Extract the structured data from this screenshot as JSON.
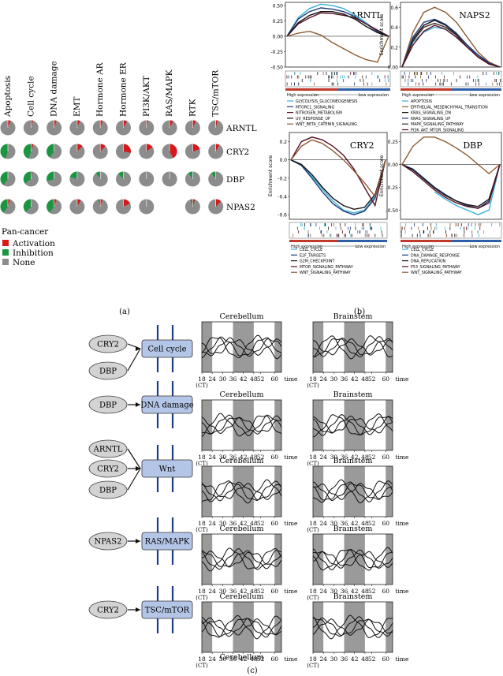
{
  "panel_labels": {
    "a": "(a)",
    "b": "(b)",
    "c": "(c)"
  },
  "chart_data": [
    {
      "type": "pie",
      "panel": "a",
      "columns": [
        "Apoptosis",
        "Cell cycle",
        "DNA damage",
        "EMT",
        "Hormone AR",
        "Hormone ER",
        "PI3K/AKT",
        "RAS/MAPK",
        "RTK",
        "TSC/mTOR"
      ],
      "rows": [
        "ARNTL",
        "CRY2",
        "DBP",
        "NPAS2"
      ],
      "legend": {
        "title": "Pan-cancer",
        "items": [
          {
            "label": "Activation",
            "color": "#d7191c"
          },
          {
            "label": "Inhibition",
            "color": "#1a9641"
          },
          {
            "label": "None",
            "color": "#8c8c8c"
          }
        ]
      },
      "colors": {
        "activation": "#d7191c",
        "inhibition": "#1a9641",
        "none": "#8c8c8c"
      },
      "values": [
        [
          [
            0.06,
            0.0
          ],
          [
            0.04,
            0.0
          ],
          [
            0.05,
            0.0
          ],
          [
            0.06,
            0.0
          ],
          [
            0.05,
            0.0
          ],
          [
            0.08,
            0.0
          ],
          [
            0.03,
            0.0
          ],
          [
            0.08,
            0.0
          ],
          [
            0.07,
            0.0
          ],
          [
            0.04,
            0.0
          ]
        ],
        [
          [
            0.0,
            0.45
          ],
          [
            0.05,
            0.45
          ],
          [
            0.0,
            0.4
          ],
          [
            0.12,
            0.0
          ],
          [
            0.12,
            0.0
          ],
          [
            0.28,
            0.0
          ],
          [
            0.15,
            0.0
          ],
          [
            0.42,
            0.0
          ],
          [
            0.2,
            0.0
          ],
          [
            0.08,
            0.0
          ]
        ],
        [
          [
            0.0,
            0.4
          ],
          [
            0.03,
            0.35
          ],
          [
            0.0,
            0.3
          ],
          [
            0.0,
            0.2
          ],
          [
            0.0,
            0.1
          ],
          [
            0.0,
            0.12
          ],
          [
            0.0,
            0.01
          ],
          [
            0.0,
            0.0
          ],
          [
            0.0,
            0.1
          ],
          [
            0.0,
            0.1
          ]
        ],
        [
          [
            0.05,
            0.4
          ],
          [
            0.02,
            0.38
          ],
          [
            0.05,
            0.4
          ],
          [
            0.08,
            0.0
          ],
          [
            0.05,
            0.05
          ],
          [
            0.18,
            0.0
          ],
          [
            0.0,
            0.0
          ],
          [
            null,
            null
          ],
          [
            0.05,
            0.05
          ],
          [
            0.12,
            0.0
          ]
        ]
      ]
    },
    {
      "type": "line",
      "panel": "b",
      "plots": [
        {
          "title": "ARNTL",
          "ylabel": "",
          "yticks": [
            "0.50",
            "0.25",
            "0.00",
            "-0.25",
            "-0.50"
          ],
          "ylim": [
            -0.5,
            0.55
          ],
          "bottom_labels": [
            "High expression",
            "Low expression"
          ],
          "series": [
            {
              "name": "GLYCOLYSIS_GLUCONEOGENESIS",
              "color": "#3cb0d8",
              "values": [
                0,
                0.3,
                0.45,
                0.52,
                0.5,
                0.45,
                0.35,
                0.22,
                0.08,
                0
              ]
            },
            {
              "name": "MTORC1_SIGNALING",
              "color": "#1d3a78",
              "values": [
                0,
                0.28,
                0.4,
                0.46,
                0.44,
                0.4,
                0.32,
                0.2,
                0.08,
                0
              ]
            },
            {
              "name": "NITROGEN_METABOLISM",
              "color": "#5a0f24",
              "values": [
                0,
                0.2,
                0.3,
                0.38,
                0.37,
                0.34,
                0.3,
                0.2,
                0.1,
                0
              ]
            },
            {
              "name": "UV_RESPONSE_UP",
              "color": "#151515",
              "values": [
                0,
                0.22,
                0.34,
                0.4,
                0.4,
                0.36,
                0.28,
                0.16,
                0.06,
                0
              ]
            },
            {
              "name": "WNT_BETA_CATENIN_SIGNALING",
              "color": "#8b5a32",
              "values": [
                0,
                0.05,
                0.08,
                0.02,
                -0.1,
                -0.2,
                -0.3,
                -0.38,
                -0.42,
                0
              ]
            }
          ]
        },
        {
          "title": "NAPS2",
          "ylabel": "Enrichment score",
          "yticks": [
            "0.6",
            "0.4",
            "0.2",
            "0.00"
          ],
          "ylim": [
            0,
            0.65
          ],
          "bottom_labels": [
            "High expression",
            "Low expression"
          ],
          "series": [
            {
              "name": "APOPTOSIS",
              "color": "#3cb0d8",
              "values": [
                0,
                0.25,
                0.35,
                0.4,
                0.38,
                0.3,
                0.2,
                0.12,
                0.05,
                0
              ]
            },
            {
              "name": "EPITHELIAL_MESENCHYMAL_TRANSITION",
              "color": "#8b5a32",
              "values": [
                0,
                0.35,
                0.55,
                0.6,
                0.55,
                0.45,
                0.3,
                0.15,
                0.05,
                0
              ]
            },
            {
              "name": "KRAS_SIGNALING_DN",
              "color": "#151515",
              "values": [
                0,
                0.28,
                0.42,
                0.47,
                0.42,
                0.33,
                0.22,
                0.12,
                0.04,
                0
              ]
            },
            {
              "name": "KRAS_SIGNALING_UP",
              "color": "#1d3a78",
              "values": [
                0,
                0.3,
                0.45,
                0.48,
                0.43,
                0.34,
                0.22,
                0.12,
                0.04,
                0
              ]
            },
            {
              "name": "MAPK_SIGNALING_PATHWAY",
              "color": "#3a2a22",
              "values": [
                0,
                0.26,
                0.4,
                0.44,
                0.4,
                0.32,
                0.2,
                0.1,
                0.03,
                0
              ]
            },
            {
              "name": "PI3K_AKT_MTOR_SIGNALING",
              "color": "#5a0f24",
              "values": [
                0,
                0.22,
                0.36,
                0.42,
                0.38,
                0.3,
                0.2,
                0.1,
                0.03,
                0
              ]
            }
          ]
        },
        {
          "title": "CRY2",
          "ylabel": "Enrichment score",
          "yticks": [
            "0.2",
            "0.0",
            "-0.2",
            "-0.4",
            "-0.6"
          ],
          "ylim": [
            -0.65,
            0.3
          ],
          "bottom_labels": [
            "High expression",
            "Low expression"
          ],
          "series": [
            {
              "name": "CELL_CYCLE",
              "color": "#3cb0d8",
              "values": [
                0,
                -0.05,
                -0.18,
                -0.32,
                -0.45,
                -0.55,
                -0.58,
                -0.55,
                -0.4,
                0
              ]
            },
            {
              "name": "E2F_TARGETS",
              "color": "#1d3a78",
              "values": [
                0,
                -0.06,
                -0.2,
                -0.35,
                -0.48,
                -0.56,
                -0.6,
                -0.56,
                -0.42,
                0
              ]
            },
            {
              "name": "G2M_CHECKPOINT",
              "color": "#151515",
              "values": [
                0,
                -0.05,
                -0.16,
                -0.3,
                -0.42,
                -0.5,
                -0.54,
                -0.52,
                -0.38,
                0
              ]
            },
            {
              "name": "MTOR_SIGNALING_PATHWAY",
              "color": "#5a0f24",
              "values": [
                0,
                0.2,
                0.25,
                0.22,
                0.15,
                0.05,
                -0.1,
                -0.3,
                -0.5,
                0
              ]
            },
            {
              "name": "WNT_SIGNALING_PATHWAY",
              "color": "#8b5a32",
              "values": [
                0,
                0.15,
                0.22,
                0.18,
                0.1,
                0,
                -0.12,
                -0.25,
                -0.4,
                0
              ]
            }
          ]
        },
        {
          "title": "DBP",
          "ylabel": "Enrichment score",
          "yticks": [
            "0.25",
            "0.00",
            "-0.25",
            "-0.50"
          ],
          "ylim": [
            -0.6,
            0.35
          ],
          "bottom_labels": [
            "High expression",
            "Low expression"
          ],
          "series": [
            {
              "name": "CELL_CYCLE",
              "color": "#3cb0d8",
              "values": [
                null,
                null,
                null,
                -0.3,
                -0.38,
                -0.45,
                -0.5,
                -0.55,
                -0.5,
                0
              ]
            },
            {
              "name": "DNA_DAMAGE_RESPONSE",
              "color": "#1d3a78",
              "values": [
                0,
                -0.05,
                -0.15,
                -0.25,
                -0.33,
                -0.4,
                -0.45,
                -0.48,
                -0.4,
                0
              ]
            },
            {
              "name": "DNA_REPLICATION",
              "color": "#151515",
              "values": [
                0,
                -0.06,
                -0.16,
                -0.26,
                -0.34,
                -0.4,
                -0.44,
                -0.46,
                -0.38,
                0
              ]
            },
            {
              "name": "P53_SIGNALING_PATHWAY",
              "color": "#5a0f24",
              "values": [
                0,
                -0.08,
                -0.18,
                -0.28,
                -0.36,
                -0.42,
                -0.46,
                -0.48,
                -0.42,
                0
              ]
            },
            {
              "name": "WNT_SIGNALING_PATHWAY",
              "color": "#8b5a32",
              "values": [
                0,
                0.2,
                0.3,
                0.3,
                0.25,
                0.18,
                0.1,
                0,
                -0.1,
                0
              ]
            }
          ]
        }
      ]
    },
    {
      "type": "line",
      "panel": "c",
      "columns": [
        "Cerebellum",
        "Brainstem"
      ],
      "x": [
        "18",
        "24",
        "30",
        "36",
        "42",
        "48",
        "52",
        "60"
      ],
      "x_unit_left": "(CT)",
      "x_unit_right": "time",
      "shaded_ct": [
        [
          18,
          24
        ],
        [
          36,
          48
        ],
        [
          60,
          64
        ]
      ],
      "bottom_caption": "Cerebellum",
      "rows": [
        {
          "pathway": "Cell cycle",
          "genes": [
            "CRY2",
            "DBP"
          ]
        },
        {
          "pathway": "DNA damage",
          "genes": [
            "DBP"
          ]
        },
        {
          "pathway": "Wnt",
          "genes": [
            "ARNTL",
            "CRY2",
            "DBP"
          ]
        },
        {
          "pathway": "RAS/MAPK",
          "genes": [
            "NPAS2"
          ]
        },
        {
          "pathway": "TSC/mTOR",
          "genes": [
            "CRY2"
          ]
        }
      ]
    }
  ]
}
